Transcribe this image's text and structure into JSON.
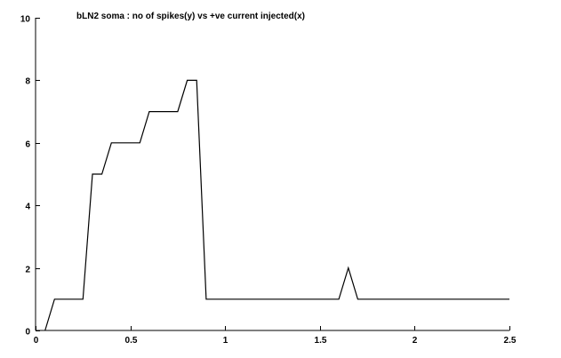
{
  "chart_data": {
    "type": "line",
    "title": "bLN2 soma : no of spikes(y) vs +ve current injected(x)",
    "xlabel": "",
    "ylabel": "",
    "xlim": [
      0,
      2.5
    ],
    "ylim": [
      0,
      10
    ],
    "x_ticks": [
      0,
      0.5,
      1,
      1.5,
      2,
      2.5
    ],
    "x_tick_labels": [
      "0",
      "0.5",
      "1",
      "1.5",
      "2",
      "2.5"
    ],
    "y_ticks": [
      0,
      2,
      4,
      6,
      8,
      10
    ],
    "y_tick_labels": [
      "0",
      "2",
      "4",
      "6",
      "8",
      "10"
    ],
    "grid": false,
    "series": [
      {
        "color": "#000000",
        "x": [
          0.05,
          0.1,
          0.25,
          0.3,
          0.35,
          0.4,
          0.55,
          0.6,
          0.75,
          0.8,
          0.85,
          0.9,
          1.6,
          1.65,
          1.7,
          2.5
        ],
        "y": [
          0,
          1,
          1,
          5,
          5,
          6,
          6,
          7,
          7,
          8,
          8,
          1,
          1,
          2,
          1,
          1
        ]
      }
    ]
  }
}
